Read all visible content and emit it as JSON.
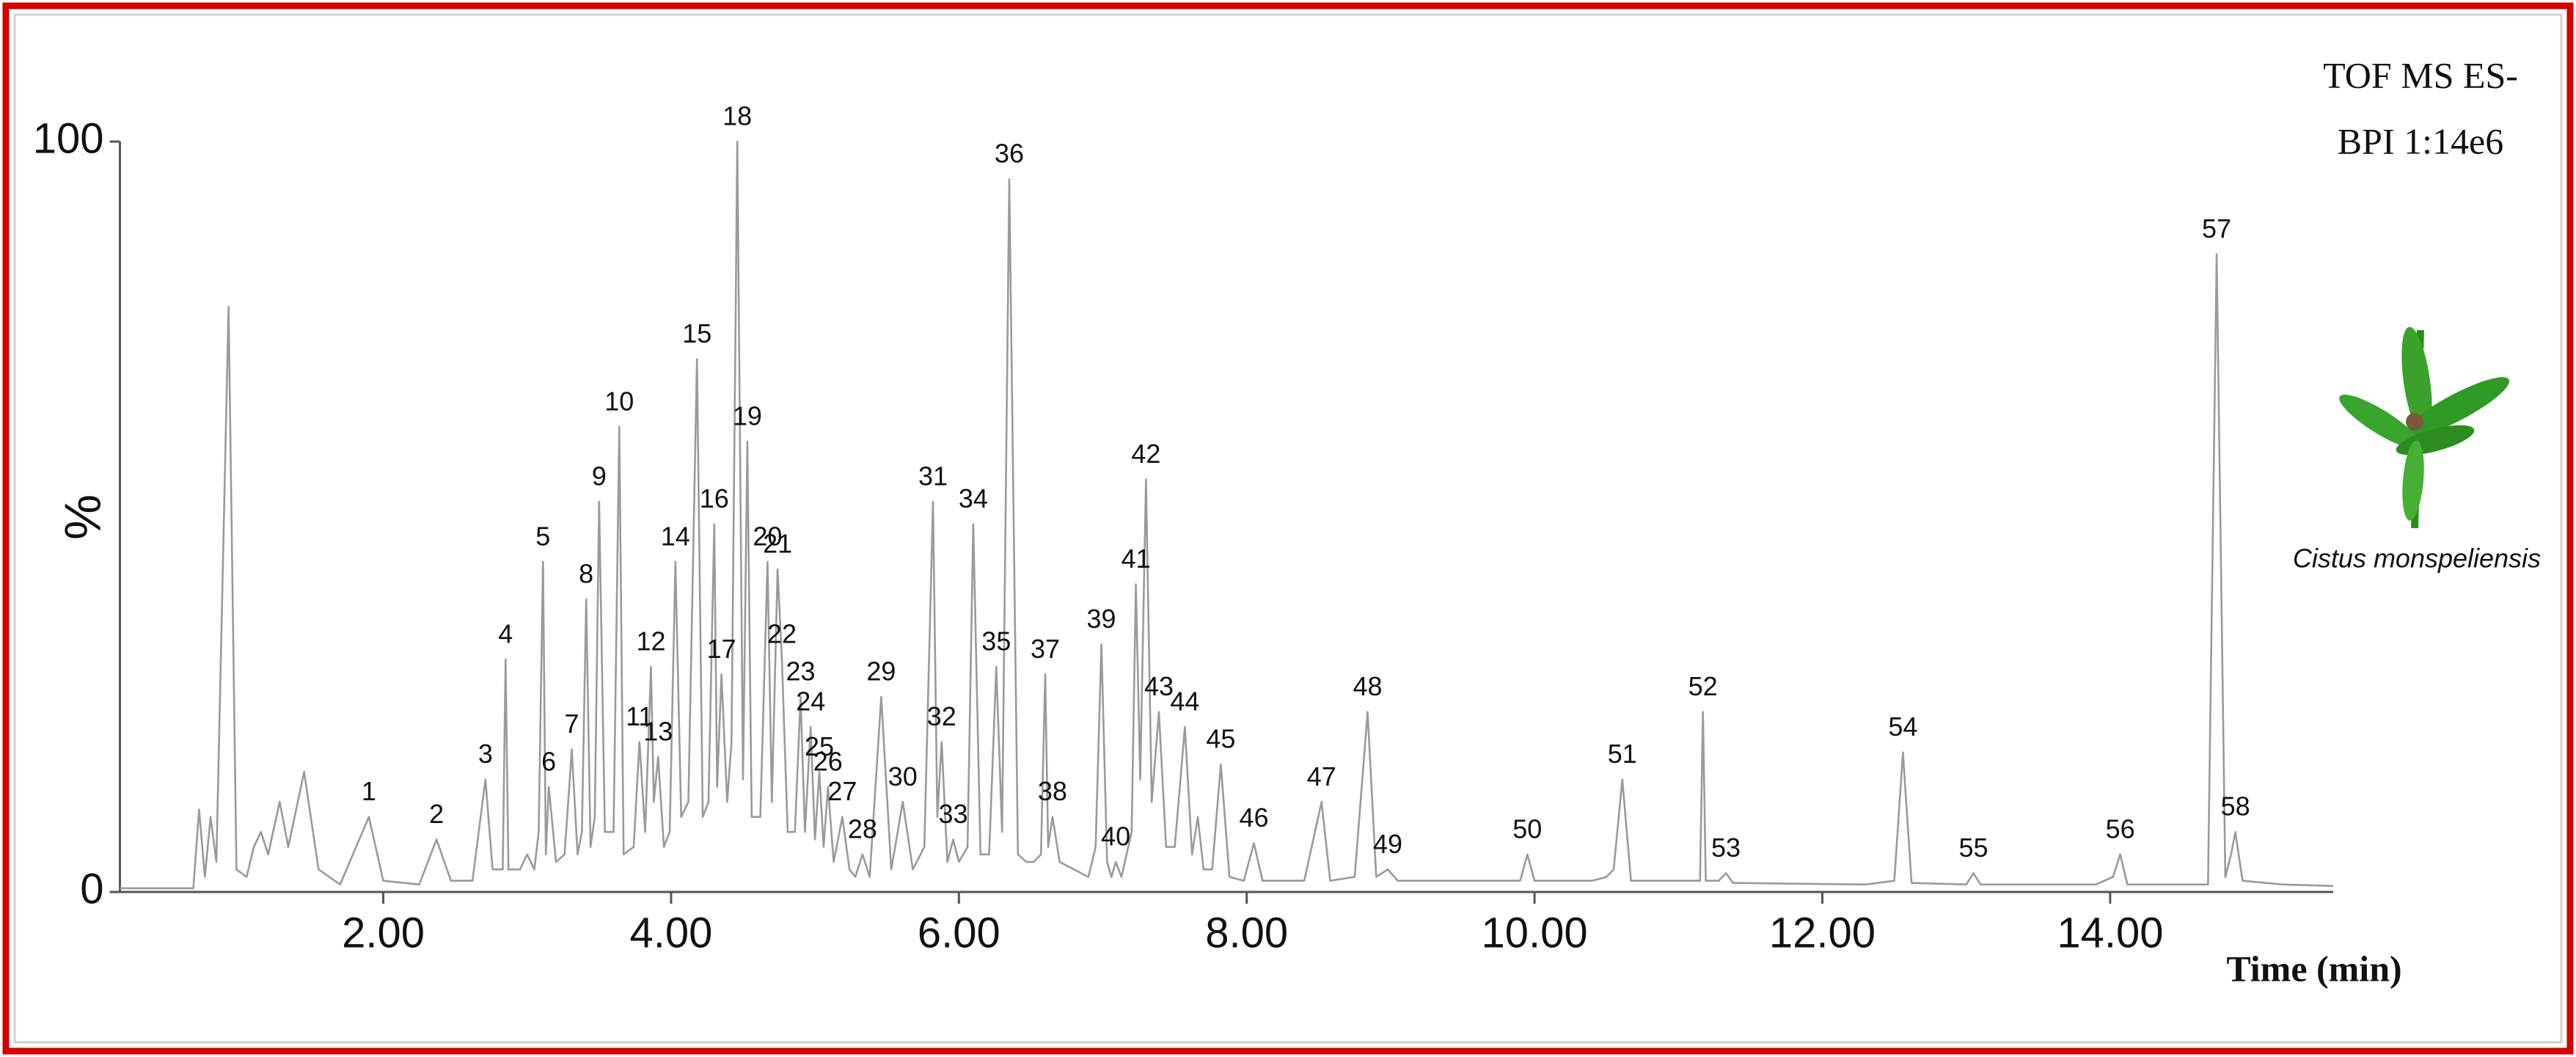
{
  "chart_data": {
    "type": "line",
    "annotations": [
      "TOF MS ES-",
      "BPI 1:14e6",
      "Cistus monspeliensis"
    ],
    "ylabel": "%",
    "xlabel": "Time (min)",
    "xlim": [
      0.17,
      15.55
    ],
    "ylim": [
      0,
      100
    ],
    "xticks": [
      {
        "value": 2,
        "label": "2.00"
      },
      {
        "value": 4,
        "label": "4.00"
      },
      {
        "value": 6,
        "label": "6.00"
      },
      {
        "value": 8,
        "label": "8.00"
      },
      {
        "value": 10,
        "label": "10.00"
      },
      {
        "value": 12,
        "label": "12.00"
      },
      {
        "value": 14,
        "label": "14.00"
      }
    ],
    "yticks": [
      0,
      100
    ],
    "series": [
      {
        "color": "#9a9a9a",
        "x": [
          0.17,
          0.68,
          0.72,
          0.76,
          0.8,
          0.84,
          0.925,
          0.98,
          1.05,
          1.1,
          1.15,
          1.2,
          1.28,
          1.34,
          1.45,
          1.55,
          1.7,
          1.9,
          2.0,
          2.25,
          2.37,
          2.47,
          2.62,
          2.71,
          2.76,
          2.83,
          2.85,
          2.87,
          2.95,
          3.0,
          3.05,
          3.08,
          3.11,
          3.13,
          3.15,
          3.2,
          3.26,
          3.31,
          3.35,
          3.38,
          3.41,
          3.44,
          3.47,
          3.5,
          3.54,
          3.6,
          3.64,
          3.67,
          3.74,
          3.78,
          3.82,
          3.86,
          3.88,
          3.91,
          3.95,
          3.99,
          4.03,
          4.07,
          4.12,
          4.18,
          4.22,
          4.26,
          4.3,
          4.32,
          4.35,
          4.39,
          4.42,
          4.46,
          4.5,
          4.53,
          4.56,
          4.62,
          4.67,
          4.7,
          4.74,
          4.77,
          4.81,
          4.86,
          4.9,
          4.93,
          4.97,
          5.0,
          5.03,
          5.06,
          5.09,
          5.13,
          5.19,
          5.24,
          5.28,
          5.33,
          5.38,
          5.46,
          5.53,
          5.61,
          5.68,
          5.76,
          5.82,
          5.85,
          5.88,
          5.92,
          5.96,
          6.0,
          6.06,
          6.1,
          6.15,
          6.21,
          6.26,
          6.3,
          6.35,
          6.41,
          6.47,
          6.52,
          6.57,
          6.6,
          6.62,
          6.65,
          6.7,
          6.8,
          6.9,
          6.95,
          6.99,
          7.03,
          7.06,
          7.09,
          7.13,
          7.2,
          7.23,
          7.26,
          7.3,
          7.34,
          7.39,
          7.44,
          7.5,
          7.57,
          7.62,
          7.66,
          7.7,
          7.76,
          7.82,
          7.88,
          7.98,
          8.05,
          8.11,
          8.4,
          8.52,
          8.58,
          8.75,
          8.84,
          8.9,
          8.98,
          9.05,
          9.9,
          9.95,
          10.0,
          10.4,
          10.5,
          10.55,
          10.61,
          10.67,
          11.15,
          11.17,
          11.19,
          11.28,
          11.33,
          11.38,
          12.3,
          12.5,
          12.56,
          12.62,
          13.0,
          13.05,
          13.1,
          13.9,
          14.02,
          14.07,
          14.12,
          14.68,
          14.74,
          14.8,
          14.84,
          14.87,
          14.92,
          15.2,
          15.55
        ],
        "values": [
          0.5,
          0.5,
          11,
          2,
          10,
          4,
          78,
          3,
          2,
          6,
          8,
          5,
          12,
          6,
          16,
          3,
          1,
          10,
          1.5,
          1,
          7,
          1.5,
          1.5,
          15,
          3,
          3,
          31,
          3,
          3,
          5,
          3,
          8,
          44,
          5,
          14,
          4,
          5,
          19,
          5,
          8,
          39,
          6,
          10,
          52,
          8,
          8,
          62,
          5,
          6,
          20,
          8,
          30,
          12,
          18,
          6,
          8,
          44,
          10,
          12,
          71,
          10,
          12,
          49,
          14,
          29,
          12,
          20,
          100,
          15,
          60,
          10,
          10,
          44,
          12,
          43,
          31,
          8,
          8,
          26,
          8,
          22,
          7,
          16,
          6,
          14,
          4,
          10,
          3,
          2,
          5,
          2,
          26,
          3,
          12,
          3,
          6,
          52,
          10,
          20,
          4,
          7,
          4,
          6,
          49,
          5,
          5,
          30,
          8,
          95,
          5,
          4,
          4,
          5,
          29,
          6,
          10,
          4,
          3,
          2,
          6,
          33,
          4,
          2,
          4,
          2,
          8,
          41,
          15,
          55,
          12,
          24,
          6,
          6,
          22,
          5,
          10,
          3,
          3,
          17,
          2,
          1.5,
          6.5,
          1.5,
          1.5,
          12,
          1.5,
          2,
          24,
          2,
          3,
          1.5,
          1.5,
          5,
          1.5,
          1.5,
          2,
          3,
          15,
          1.5,
          1.5,
          24,
          1.5,
          1.5,
          2.5,
          1.2,
          1,
          1.5,
          18.6,
          1.2,
          1,
          2.5,
          1,
          1,
          2,
          5,
          1,
          1,
          85,
          2,
          5,
          8,
          1.5,
          1,
          0.8
        ]
      }
    ],
    "peaks": [
      {
        "label": "1",
        "time": 1.9
      },
      {
        "label": "2",
        "time": 2.37
      },
      {
        "label": "3",
        "time": 2.71
      },
      {
        "label": "4",
        "time": 2.85
      },
      {
        "label": "5",
        "time": 3.11
      },
      {
        "label": "6",
        "time": 3.15
      },
      {
        "label": "7",
        "time": 3.31
      },
      {
        "label": "8",
        "time": 3.41
      },
      {
        "label": "9",
        "time": 3.5
      },
      {
        "label": "10",
        "time": 3.64
      },
      {
        "label": "11",
        "time": 3.78
      },
      {
        "label": "12",
        "time": 3.86
      },
      {
        "label": "13",
        "time": 3.91
      },
      {
        "label": "14",
        "time": 4.03
      },
      {
        "label": "15",
        "time": 4.18
      },
      {
        "label": "16",
        "time": 4.3
      },
      {
        "label": "17",
        "time": 4.35
      },
      {
        "label": "18",
        "time": 4.46
      },
      {
        "label": "19",
        "time": 4.53
      },
      {
        "label": "20",
        "time": 4.67
      },
      {
        "label": "21",
        "time": 4.74
      },
      {
        "label": "22",
        "time": 4.77
      },
      {
        "label": "23",
        "time": 4.9
      },
      {
        "label": "24",
        "time": 4.97
      },
      {
        "label": "25",
        "time": 5.03
      },
      {
        "label": "26",
        "time": 5.09
      },
      {
        "label": "27",
        "time": 5.19
      },
      {
        "label": "28",
        "time": 5.33
      },
      {
        "label": "29",
        "time": 5.46
      },
      {
        "label": "30",
        "time": 5.61
      },
      {
        "label": "31",
        "time": 5.82
      },
      {
        "label": "32",
        "time": 5.88
      },
      {
        "label": "33",
        "time": 5.96
      },
      {
        "label": "34",
        "time": 6.1
      },
      {
        "label": "35",
        "time": 6.26
      },
      {
        "label": "36",
        "time": 6.35
      },
      {
        "label": "37",
        "time": 6.6
      },
      {
        "label": "38",
        "time": 6.65
      },
      {
        "label": "39",
        "time": 6.99
      },
      {
        "label": "40",
        "time": 7.09
      },
      {
        "label": "41",
        "time": 7.23
      },
      {
        "label": "42",
        "time": 7.3
      },
      {
        "label": "43",
        "time": 7.39
      },
      {
        "label": "44",
        "time": 7.57
      },
      {
        "label": "45",
        "time": 7.82
      },
      {
        "label": "46",
        "time": 8.05
      },
      {
        "label": "47",
        "time": 8.52
      },
      {
        "label": "48",
        "time": 8.84
      },
      {
        "label": "49",
        "time": 8.98
      },
      {
        "label": "50",
        "time": 9.95
      },
      {
        "label": "51",
        "time": 10.61
      },
      {
        "label": "52",
        "time": 11.17
      },
      {
        "label": "53",
        "time": 11.33
      },
      {
        "label": "54",
        "time": 12.56
      },
      {
        "label": "55",
        "time": 13.05
      },
      {
        "label": "56",
        "time": 14.07
      },
      {
        "label": "57",
        "time": 14.74
      },
      {
        "label": "58",
        "time": 14.87
      }
    ]
  }
}
